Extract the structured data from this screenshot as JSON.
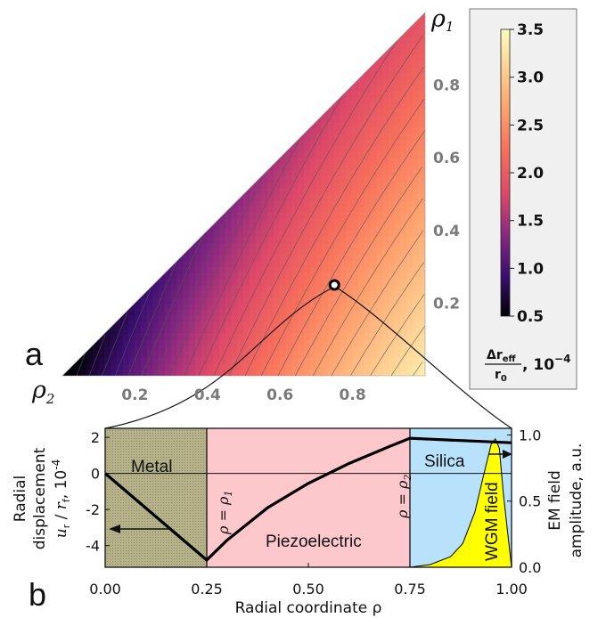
{
  "panel_a": {
    "letter": "a",
    "y_axis_label": "ρ",
    "y_axis_sub": "1",
    "x_axis_label": "ρ",
    "x_axis_sub": "2",
    "y_ticks": [
      "0.2",
      "0.4",
      "0.6",
      "0.8"
    ],
    "x_ticks": [
      "0.2",
      "0.4",
      "0.6",
      "0.8"
    ],
    "colorbar": {
      "ticks": [
        "0.5",
        "1.0",
        "1.5",
        "2.0",
        "2.5",
        "3.0",
        "3.5"
      ],
      "label_num": "Δr",
      "label_num_sub": "eff",
      "label_den": "r",
      "label_den_sub": "0",
      "label_units": ", 10",
      "label_exp": "−4",
      "colors": [
        "#000004",
        "#3b0f70",
        "#8c2981",
        "#de4968",
        "#f66e5c",
        "#fe9f6d",
        "#fecf92",
        "#fcfdbf"
      ]
    }
  },
  "panel_b": {
    "letter": "b",
    "x_label": "Radial coordinate ρ",
    "y_left_label_1": "Radial",
    "y_left_label_2": "displacement",
    "y_left_var": "u",
    "y_left_var_sub": "r",
    "y_left_den": "r",
    "y_left_den_sub": "f",
    "y_left_units": ", 10",
    "y_left_exp": "-4",
    "y_right_label_1": "EM field",
    "y_right_label_2": "amplitude, a.u.",
    "x_ticks": [
      "0.00",
      "0.25",
      "0.50",
      "0.75",
      "1.00"
    ],
    "y_left_ticks": [
      "2",
      "0",
      "-2",
      "-4"
    ],
    "y_right_ticks": [
      "1.0",
      "0.5",
      "0.0"
    ],
    "regions": {
      "metal": "Metal",
      "piezo": "Piezoelectric",
      "silica": "Silica",
      "wgm": "WGM field"
    },
    "boundary_1": "ρ = ρ",
    "boundary_1_sub": "1",
    "boundary_2": "ρ = ρ",
    "boundary_2_sub": "2",
    "region_colors": {
      "metal": "#b5b28a",
      "piezo": "#fdc8cc",
      "silica": "#b8e2fb",
      "wgm": "#ffff00"
    }
  },
  "chart_data": [
    {
      "type": "heatmap",
      "title": "",
      "xlabel": "ρ2",
      "ylabel": "ρ1",
      "xlim": [
        0.0,
        1.0
      ],
      "ylim": [
        0.0,
        1.0
      ],
      "domain": "ρ2 ≥ ρ1",
      "colorbar_label": "Δr_eff / r_0, 10^-4",
      "colorbar_range": [
        0.5,
        3.5
      ],
      "colormap": "inferno",
      "marker_point": {
        "rho2": 0.75,
        "rho1": 0.25
      }
    },
    {
      "type": "line",
      "title": "",
      "xlabel": "Radial coordinate ρ",
      "ylabel": "Radial displacement u_r / r_f, 10^-4",
      "y2label": "EM field amplitude, a.u.",
      "xlim": [
        0.0,
        1.0
      ],
      "ylim": [
        -5.2,
        2.5
      ],
      "y2lim": [
        0.0,
        1.05
      ],
      "rho1": 0.25,
      "rho2": 0.75,
      "series": [
        {
          "name": "displacement",
          "x": [
            0.0,
            0.25,
            0.3,
            0.4,
            0.5,
            0.6,
            0.7,
            0.75,
            0.8,
            0.9,
            1.0
          ],
          "values": [
            0.0,
            -4.8,
            -3.7,
            -1.9,
            -0.55,
            0.55,
            1.5,
            1.95,
            1.9,
            1.8,
            1.7
          ]
        },
        {
          "name": "WGM field",
          "x": [
            0.75,
            0.8,
            0.85,
            0.88,
            0.91,
            0.93,
            0.95,
            0.96,
            0.97,
            0.98,
            1.0
          ],
          "values": [
            0.0,
            0.02,
            0.08,
            0.18,
            0.42,
            0.68,
            0.93,
            0.97,
            0.9,
            0.55,
            0.0
          ]
        }
      ]
    }
  ]
}
